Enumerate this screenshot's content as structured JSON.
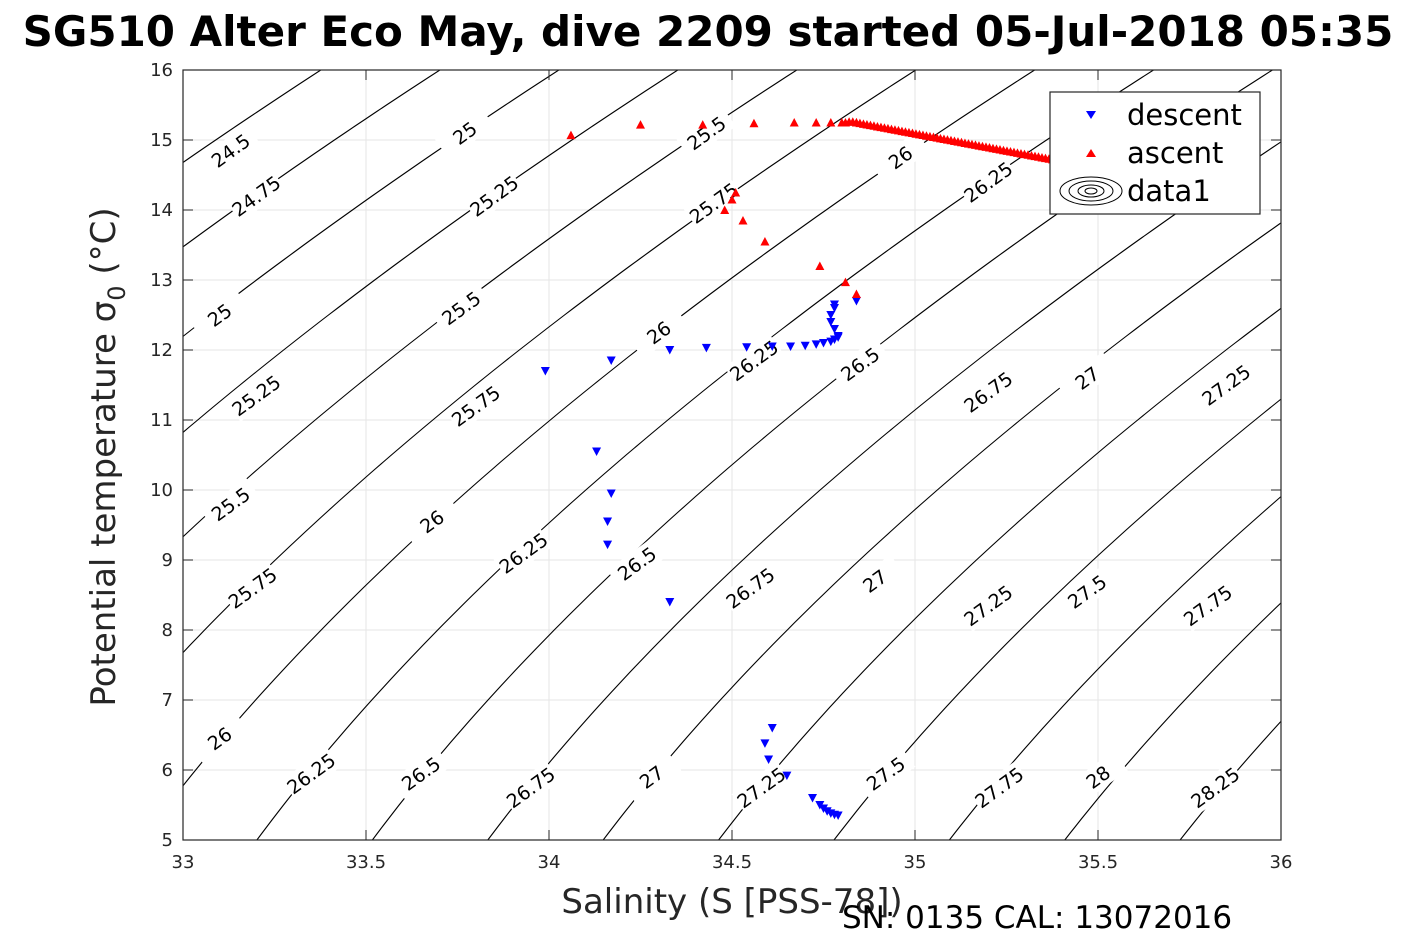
{
  "title": "SG510 Alter Eco May, dive 2209 started 05-Jul-2018 05:35",
  "footer": "SN: 0135  CAL: 13072016",
  "chart_data": {
    "type": "scatter",
    "xlabel": "Salinity (S [PSS-78])",
    "ylabel_main": "Potential temperature ",
    "ylabel_sym": "σ",
    "ylabel_sub": "0",
    "ylabel_unit": " (°C)",
    "xlim": [
      33,
      36
    ],
    "ylim": [
      5,
      16
    ],
    "xticks": [
      "33",
      "33.5",
      "34",
      "34.5",
      "35",
      "35.5",
      "36"
    ],
    "xtick_values": [
      33,
      33.5,
      34,
      34.5,
      35,
      35.5,
      36
    ],
    "yticks": [
      "5",
      "6",
      "7",
      "8",
      "9",
      "10",
      "11",
      "12",
      "13",
      "14",
      "15",
      "16"
    ],
    "ytick_values": [
      5,
      6,
      7,
      8,
      9,
      10,
      11,
      12,
      13,
      14,
      15,
      16
    ],
    "grid": true,
    "legend_position": "top-right",
    "legend": [
      "descent",
      "ascent",
      "data1"
    ],
    "colors": {
      "descent": "#0000ff",
      "ascent": "#ff0000",
      "contour": "#000000",
      "grid": "#e6e6e6"
    },
    "contour_levels": [
      24.5,
      24.75,
      25,
      25.25,
      25.5,
      25.75,
      26,
      26.25,
      26.5,
      26.75,
      27,
      27.25,
      27.5,
      27.75,
      28,
      28.25
    ],
    "contour_labels": [
      {
        "text": "24.5",
        "x": 33.13,
        "y": 14.85
      },
      {
        "text": "25",
        "x": 33.77,
        "y": 15.1
      },
      {
        "text": "25.5",
        "x": 34.43,
        "y": 15.1
      },
      {
        "text": "24.75",
        "x": 33.2,
        "y": 14.2
      },
      {
        "text": "25.25",
        "x": 33.85,
        "y": 14.2
      },
      {
        "text": "25.75",
        "x": 34.45,
        "y": 14.1
      },
      {
        "text": "26",
        "x": 34.96,
        "y": 14.75
      },
      {
        "text": "26.25",
        "x": 35.2,
        "y": 14.4
      },
      {
        "text": "25",
        "x": 33.1,
        "y": 12.5
      },
      {
        "text": "25.5",
        "x": 33.76,
        "y": 12.6
      },
      {
        "text": "26",
        "x": 34.3,
        "y": 12.25
      },
      {
        "text": "26.25",
        "x": 34.56,
        "y": 11.85
      },
      {
        "text": "26.5",
        "x": 34.85,
        "y": 11.8
      },
      {
        "text": "26.75",
        "x": 35.2,
        "y": 11.4
      },
      {
        "text": "27",
        "x": 35.47,
        "y": 11.6
      },
      {
        "text": "27.25",
        "x": 35.85,
        "y": 11.5
      },
      {
        "text": "25.25",
        "x": 33.2,
        "y": 11.35
      },
      {
        "text": "25.75",
        "x": 33.8,
        "y": 11.2
      },
      {
        "text": "25.5",
        "x": 33.13,
        "y": 9.8
      },
      {
        "text": "26",
        "x": 33.68,
        "y": 9.55
      },
      {
        "text": "26.25",
        "x": 33.93,
        "y": 9.1
      },
      {
        "text": "26.5",
        "x": 34.24,
        "y": 8.95
      },
      {
        "text": "26.75",
        "x": 34.55,
        "y": 8.6
      },
      {
        "text": "27",
        "x": 34.89,
        "y": 8.7
      },
      {
        "text": "27.25",
        "x": 35.2,
        "y": 8.35
      },
      {
        "text": "27.5",
        "x": 35.47,
        "y": 8.55
      },
      {
        "text": "27.75",
        "x": 35.8,
        "y": 8.35
      },
      {
        "text": "25.75",
        "x": 33.19,
        "y": 8.6
      },
      {
        "text": "26",
        "x": 33.1,
        "y": 6.45
      },
      {
        "text": "26.25",
        "x": 33.35,
        "y": 5.95
      },
      {
        "text": "26.5",
        "x": 33.65,
        "y": 5.95
      },
      {
        "text": "26.75",
        "x": 33.95,
        "y": 5.75
      },
      {
        "text": "27",
        "x": 34.28,
        "y": 5.9
      },
      {
        "text": "27.25",
        "x": 34.58,
        "y": 5.75
      },
      {
        "text": "27.5",
        "x": 34.92,
        "y": 5.95
      },
      {
        "text": "27.75",
        "x": 35.23,
        "y": 5.75
      },
      {
        "text": "28",
        "x": 35.5,
        "y": 5.9
      },
      {
        "text": "28.25",
        "x": 35.82,
        "y": 5.75
      }
    ],
    "series": [
      {
        "name": "descent",
        "marker": "triangle-down",
        "points": [
          [
            33.99,
            11.7
          ],
          [
            34.17,
            11.85
          ],
          [
            34.33,
            12.0
          ],
          [
            34.43,
            12.03
          ],
          [
            34.54,
            12.04
          ],
          [
            34.61,
            12.05
          ],
          [
            34.66,
            12.05
          ],
          [
            34.7,
            12.06
          ],
          [
            34.73,
            12.08
          ],
          [
            34.75,
            12.1
          ],
          [
            34.77,
            12.12
          ],
          [
            34.78,
            12.15
          ],
          [
            34.79,
            12.18
          ],
          [
            34.79,
            12.2
          ],
          [
            34.78,
            12.3
          ],
          [
            34.77,
            12.4
          ],
          [
            34.77,
            12.5
          ],
          [
            34.78,
            12.6
          ],
          [
            34.78,
            12.65
          ],
          [
            34.84,
            12.7
          ],
          [
            34.13,
            10.55
          ],
          [
            34.17,
            9.95
          ],
          [
            34.16,
            9.55
          ],
          [
            34.16,
            9.22
          ],
          [
            34.33,
            8.4
          ],
          [
            34.61,
            6.6
          ],
          [
            34.59,
            6.38
          ],
          [
            34.6,
            6.15
          ],
          [
            34.65,
            5.92
          ],
          [
            34.72,
            5.6
          ],
          [
            34.74,
            5.5
          ],
          [
            34.75,
            5.45
          ],
          [
            34.76,
            5.41
          ],
          [
            34.77,
            5.38
          ],
          [
            34.78,
            5.36
          ],
          [
            34.79,
            5.35
          ]
        ]
      },
      {
        "name": "ascent",
        "marker": "triangle-up",
        "points": [
          [
            34.06,
            15.07
          ],
          [
            34.25,
            15.22
          ],
          [
            34.42,
            15.22
          ],
          [
            34.56,
            15.24
          ],
          [
            34.67,
            15.25
          ],
          [
            34.73,
            15.25
          ],
          [
            34.77,
            15.25
          ],
          [
            34.8,
            15.25
          ],
          [
            34.81,
            15.25
          ],
          [
            34.82,
            15.26
          ],
          [
            34.83,
            15.26
          ],
          [
            34.84,
            15.25
          ],
          [
            34.51,
            14.25
          ],
          [
            34.5,
            14.15
          ],
          [
            34.48,
            14.0
          ],
          [
            34.53,
            13.85
          ],
          [
            34.59,
            13.55
          ],
          [
            34.74,
            13.2
          ],
          [
            34.81,
            12.97
          ],
          [
            34.84,
            12.8
          ]
        ],
        "line": {
          "x_start": 34.84,
          "y_start": 15.25,
          "x_end": 35.5,
          "y_end": 14.6,
          "count": 70
        }
      }
    ]
  }
}
